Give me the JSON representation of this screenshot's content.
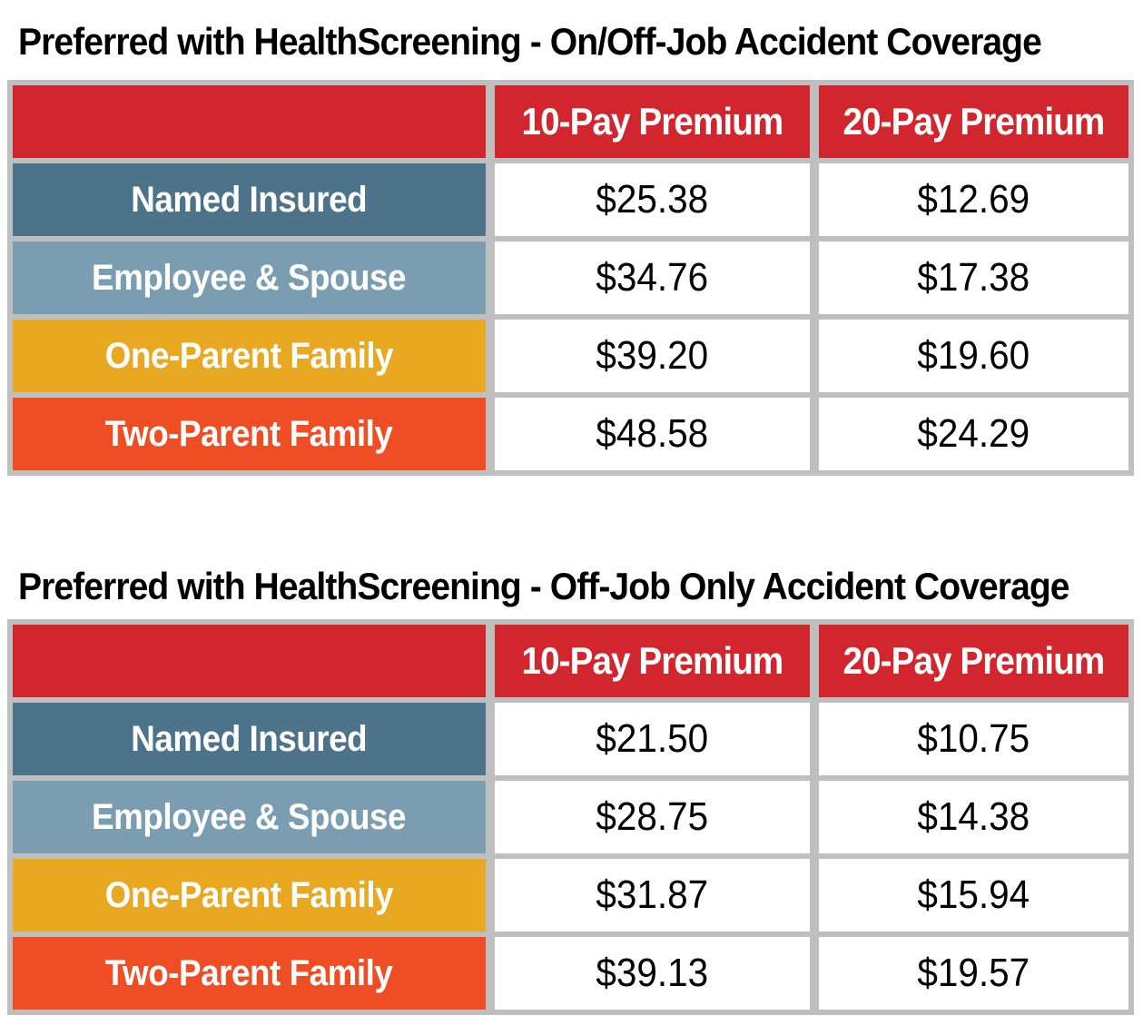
{
  "colors": {
    "header_red": "#D2262E",
    "row_dark_blue": "#4C7389",
    "row_light_blue": "#7A9DB2",
    "row_gold": "#E9A821",
    "row_orange": "#EF4E25",
    "grid_gray": "#BFBFBF",
    "header_text": "#FFFFFF",
    "value_text": "#000000",
    "title_text": "#000000"
  },
  "tables": [
    {
      "title": "Preferred with HealthScreening - On/Off-Job Accident Coverage",
      "columns": [
        "",
        "10-Pay Premium",
        "20-Pay Premium"
      ],
      "rows": [
        {
          "label": "Named Insured",
          "pay10": "$25.38",
          "pay20": "$12.69",
          "color": "#4C7389"
        },
        {
          "label": "Employee & Spouse",
          "pay10": "$34.76",
          "pay20": "$17.38",
          "color": "#7A9DB2"
        },
        {
          "label": "One-Parent Family",
          "pay10": "$39.20",
          "pay20": "$19.60",
          "color": "#E9A821"
        },
        {
          "label": "Two-Parent Family",
          "pay10": "$48.58",
          "pay20": "$24.29",
          "color": "#EF4E25"
        }
      ]
    },
    {
      "title": "Preferred with HealthScreening - Off-Job Only Accident Coverage",
      "columns": [
        "",
        "10-Pay Premium",
        "20-Pay Premium"
      ],
      "rows": [
        {
          "label": "Named Insured",
          "pay10": "$21.50",
          "pay20": "$10.75",
          "color": "#4C7389"
        },
        {
          "label": "Employee & Spouse",
          "pay10": "$28.75",
          "pay20": "$14.38",
          "color": "#7A9DB2"
        },
        {
          "label": "One-Parent Family",
          "pay10": "$31.87",
          "pay20": "$15.94",
          "color": "#E9A821"
        },
        {
          "label": "Two-Parent Family",
          "pay10": "$39.13",
          "pay20": "$19.57",
          "color": "#EF4E25"
        }
      ]
    }
  ]
}
